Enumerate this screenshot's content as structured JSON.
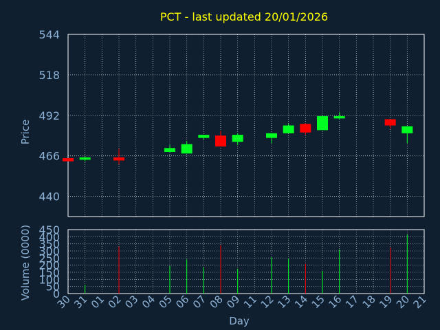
{
  "chart_data": [
    {
      "type": "candlestick",
      "title": "PCT - last updated 20/01/2026",
      "ylabel": "Price",
      "ylim": [
        427,
        544
      ],
      "yticks": [
        "544",
        "518",
        "492",
        "466",
        "440"
      ],
      "grid": true,
      "colors": {
        "up": "#00ff20",
        "down": "#ff0000",
        "title": "#ffff00",
        "label": "#8fb3d6",
        "frame": "#ffffff",
        "grid": "#ffffff"
      },
      "days": [
        "30",
        "31",
        "01",
        "02",
        "03",
        "04",
        "05",
        "06",
        "07",
        "08",
        "09",
        "11",
        "12",
        "13",
        "14",
        "15",
        "16",
        "17",
        "18",
        "19",
        "20",
        "21"
      ],
      "candles": [
        {
          "day": "30",
          "open": 464.5,
          "close": 462.5,
          "high": 464.5,
          "low": 462.5
        },
        {
          "day": "31",
          "open": 463.5,
          "close": 465.0,
          "high": 465.5,
          "low": 462.5
        },
        {
          "day": "02",
          "open": 465.0,
          "close": 463.0,
          "high": 470.5,
          "low": 460.5
        },
        {
          "day": "05",
          "open": 468.5,
          "close": 471.0,
          "high": 473.0,
          "low": 468.5
        },
        {
          "day": "06",
          "open": 467.5,
          "close": 473.5,
          "high": 475.5,
          "low": 467.5
        },
        {
          "day": "07",
          "open": 477.5,
          "close": 479.5,
          "high": 479.5,
          "low": 476.5
        },
        {
          "day": "08",
          "open": 479.0,
          "close": 472.0,
          "high": 482.0,
          "low": 472.0
        },
        {
          "day": "09",
          "open": 475.0,
          "close": 479.5,
          "high": 480.5,
          "low": 473.0
        },
        {
          "day": "12",
          "open": 477.5,
          "close": 480.5,
          "high": 480.5,
          "low": 474.0
        },
        {
          "day": "13",
          "open": 480.5,
          "close": 485.5,
          "high": 486.5,
          "low": 480.5
        },
        {
          "day": "14",
          "open": 486.5,
          "close": 481.0,
          "high": 487.0,
          "low": 479.5
        },
        {
          "day": "15",
          "open": 482.5,
          "close": 491.5,
          "high": 492.0,
          "low": 482.5
        },
        {
          "day": "16",
          "open": 490.0,
          "close": 491.5,
          "high": 494.0,
          "low": 489.5
        },
        {
          "day": "19",
          "open": 489.5,
          "close": 485.5,
          "high": 489.5,
          "low": 483.5
        },
        {
          "day": "20",
          "open": 480.5,
          "close": 485.0,
          "high": 485.0,
          "low": 474.0
        }
      ]
    },
    {
      "type": "bar",
      "ylabel": "Volume (0000)",
      "xlabel": "Day",
      "ylim": [
        0,
        450
      ],
      "yticks": [
        "450",
        "400",
        "350",
        "300",
        "250",
        "200",
        "150",
        "100",
        "50",
        "0"
      ],
      "grid": true,
      "volumes": [
        {
          "day": "31",
          "value": 60,
          "color": "up"
        },
        {
          "day": "02",
          "value": 330,
          "color": "down"
        },
        {
          "day": "05",
          "value": 195,
          "color": "up"
        },
        {
          "day": "06",
          "value": 240,
          "color": "up"
        },
        {
          "day": "07",
          "value": 185,
          "color": "up"
        },
        {
          "day": "08",
          "value": 340,
          "color": "down"
        },
        {
          "day": "09",
          "value": 175,
          "color": "up"
        },
        {
          "day": "12",
          "value": 255,
          "color": "up"
        },
        {
          "day": "13",
          "value": 245,
          "color": "up"
        },
        {
          "day": "14",
          "value": 210,
          "color": "down"
        },
        {
          "day": "15",
          "value": 160,
          "color": "up"
        },
        {
          "day": "16",
          "value": 310,
          "color": "up"
        },
        {
          "day": "19",
          "value": 325,
          "color": "down"
        },
        {
          "day": "20",
          "value": 415,
          "color": "up"
        }
      ]
    }
  ]
}
